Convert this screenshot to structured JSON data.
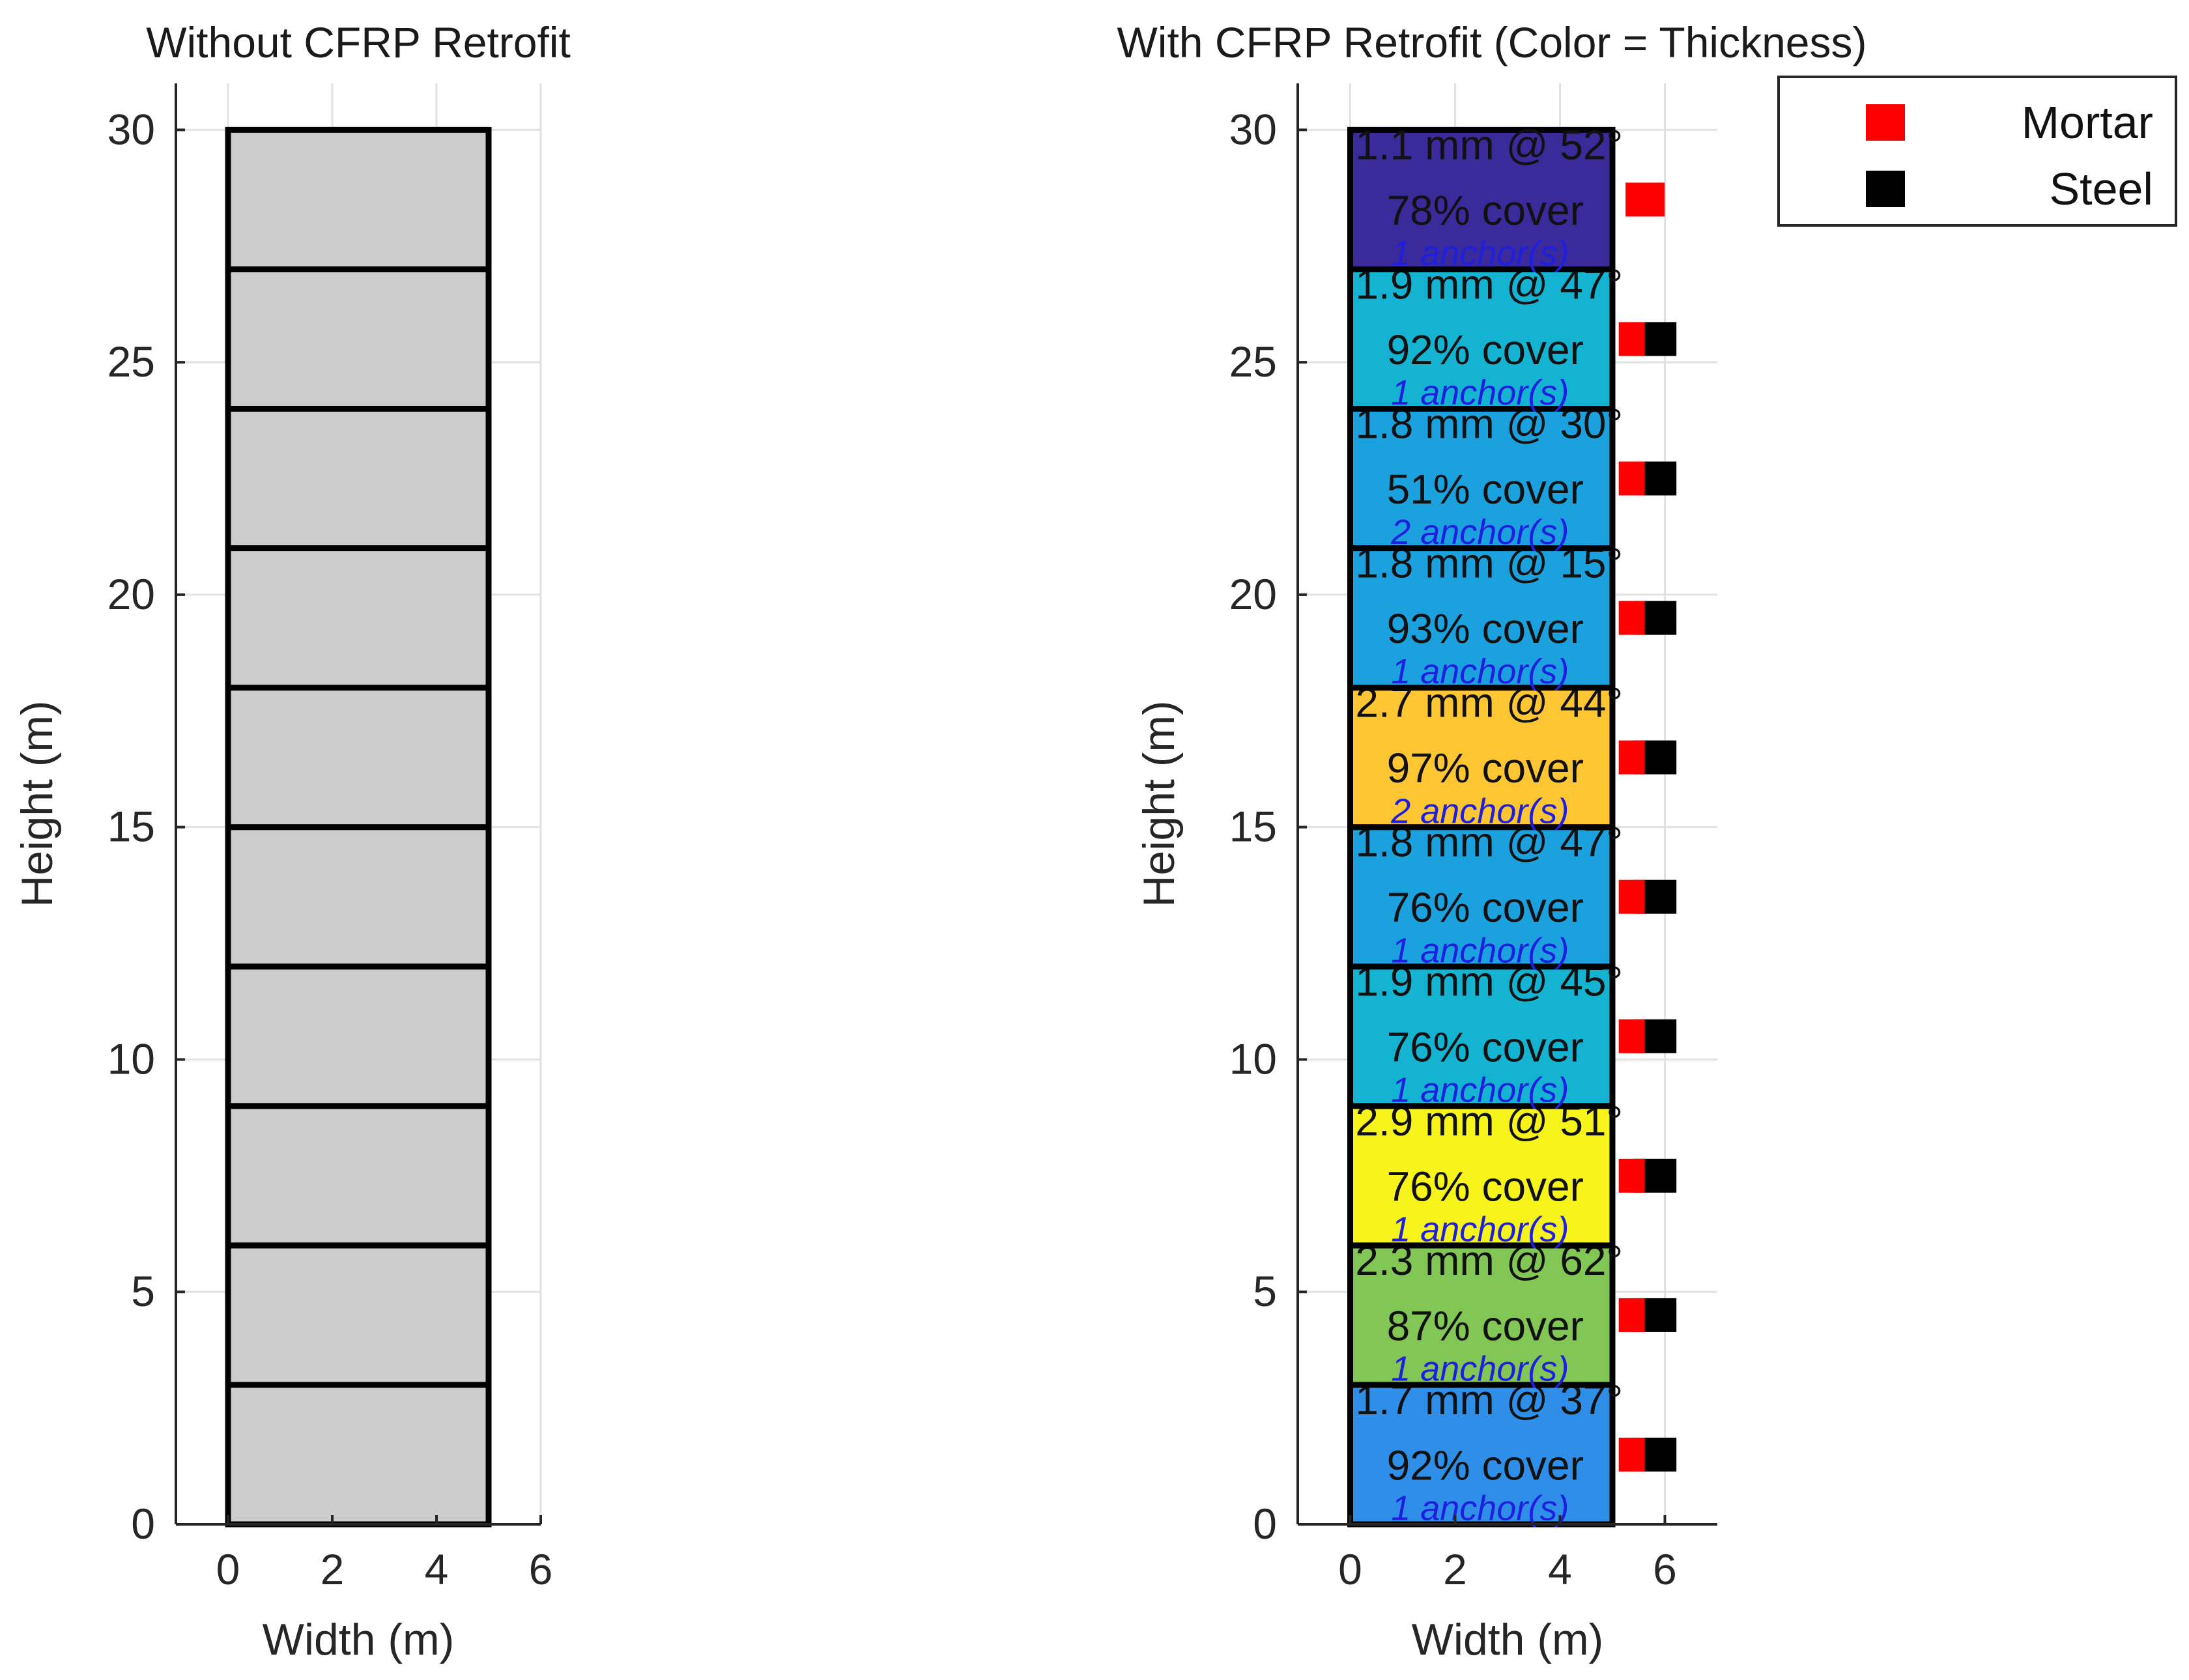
{
  "chart_data": [
    {
      "type": "bar",
      "title": "Without CFRP Retrofit",
      "xlabel": "Width (m)",
      "ylabel": "Height (m)",
      "xlim": [
        -1,
        6
      ],
      "ylim": [
        0,
        31
      ],
      "xticks": [
        "0",
        "2",
        "4",
        "6"
      ],
      "yticks": [
        "0",
        "5",
        "10",
        "15",
        "20",
        "25",
        "30"
      ],
      "grid": true,
      "x": [
        0,
        5
      ],
      "segments": [
        {
          "y0": 0,
          "y1": 3,
          "color": "#cccccc"
        },
        {
          "y0": 3,
          "y1": 6,
          "color": "#cccccc"
        },
        {
          "y0": 6,
          "y1": 9,
          "color": "#cccccc"
        },
        {
          "y0": 9,
          "y1": 12,
          "color": "#cccccc"
        },
        {
          "y0": 12,
          "y1": 15,
          "color": "#cccccc"
        },
        {
          "y0": 15,
          "y1": 18,
          "color": "#cccccc"
        },
        {
          "y0": 18,
          "y1": 21,
          "color": "#cccccc"
        },
        {
          "y0": 21,
          "y1": 24,
          "color": "#cccccc"
        },
        {
          "y0": 24,
          "y1": 27,
          "color": "#cccccc"
        },
        {
          "y0": 27,
          "y1": 30,
          "color": "#cccccc"
        }
      ]
    },
    {
      "type": "bar",
      "title": "With CFRP Retrofit (Color = Thickness)",
      "xlabel": "Width (m)",
      "ylabel": "Height (m)",
      "xlim": [
        -1,
        7
      ],
      "ylim": [
        0,
        31
      ],
      "xticks": [
        "0",
        "2",
        "4",
        "6"
      ],
      "yticks": [
        "0",
        "5",
        "10",
        "15",
        "20",
        "25",
        "30"
      ],
      "grid": true,
      "legend_position": "top-right (outside)",
      "legend": [
        {
          "name": "Mortar",
          "color": "#ff0000"
        },
        {
          "name": "Steel",
          "color": "#000000"
        }
      ],
      "x": [
        0,
        5
      ],
      "segments": [
        {
          "y0": 0,
          "y1": 3,
          "color": "#2f8fe8",
          "line1": "1.7 mm @ 37°",
          "line2": "92% cover",
          "anchors": "1 anchor(s)",
          "mortar": true,
          "steel": true
        },
        {
          "y0": 3,
          "y1": 6,
          "color": "#82c656",
          "line1": "2.3 mm @ 62°",
          "line2": "87% cover",
          "anchors": "1 anchor(s)",
          "mortar": true,
          "steel": true
        },
        {
          "y0": 6,
          "y1": 9,
          "color": "#f6f41a",
          "line1": "2.9 mm @ 51°",
          "line2": "76% cover",
          "anchors": "1 anchor(s)",
          "mortar": true,
          "steel": true
        },
        {
          "y0": 9,
          "y1": 12,
          "color": "#13b3d1",
          "line1": "1.9 mm @ 45°",
          "line2": "76% cover",
          "anchors": "1 anchor(s)",
          "mortar": true,
          "steel": true
        },
        {
          "y0": 12,
          "y1": 15,
          "color": "#1ca1df",
          "line1": "1.8 mm @ 47°",
          "line2": "76% cover",
          "anchors": "1 anchor(s)",
          "mortar": true,
          "steel": true
        },
        {
          "y0": 15,
          "y1": 18,
          "color": "#fdc632",
          "line1": "2.7 mm @ 44°",
          "line2": "97% cover",
          "anchors": "2 anchor(s)",
          "mortar": true,
          "steel": true
        },
        {
          "y0": 18,
          "y1": 21,
          "color": "#1ca1df",
          "line1": "1.8 mm @ 15°",
          "line2": "93% cover",
          "anchors": "1 anchor(s)",
          "mortar": true,
          "steel": true
        },
        {
          "y0": 21,
          "y1": 24,
          "color": "#1ca1df",
          "line1": "1.8 mm @ 30°",
          "line2": "51% cover",
          "anchors": "2 anchor(s)",
          "mortar": true,
          "steel": true
        },
        {
          "y0": 24,
          "y1": 27,
          "color": "#13b3d1",
          "line1": "1.9 mm @ 47°",
          "line2": "92% cover",
          "anchors": "1 anchor(s)",
          "mortar": true,
          "steel": true
        },
        {
          "y0": 27,
          "y1": 30,
          "color": "#3a2a9a",
          "line1": "1.1 mm @ 52°",
          "line2": "78% cover",
          "anchors": "1 anchor(s)",
          "mortar": true,
          "steel": false
        }
      ]
    }
  ]
}
